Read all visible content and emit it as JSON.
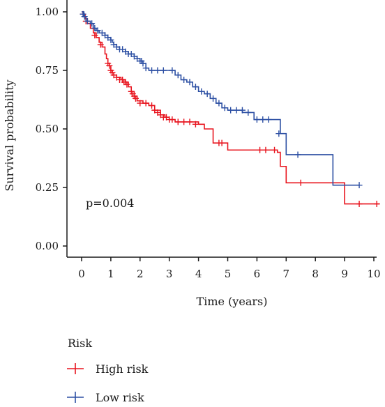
{
  "chart_data": {
    "type": "line",
    "subtype": "kaplan-meier",
    "xlabel": "Time (years)",
    "ylabel": "Survival probability",
    "xlim": [
      0,
      10
    ],
    "ylim": [
      0,
      1
    ],
    "x_ticks": [
      "0",
      "1",
      "2",
      "3",
      "4",
      "5",
      "6",
      "7",
      "8",
      "9",
      "10"
    ],
    "y_ticks": [
      "0.00",
      "0.25",
      "0.50",
      "0.75",
      "1.00"
    ],
    "grid": false,
    "annotation": "p=0.004",
    "legend_title": "Risk",
    "legend_position": "bottom",
    "series": [
      {
        "name": "High risk",
        "color": "#e8141e",
        "steps": [
          [
            0,
            1.0
          ],
          [
            0.05,
            0.99
          ],
          [
            0.12,
            0.97
          ],
          [
            0.2,
            0.95
          ],
          [
            0.3,
            0.93
          ],
          [
            0.4,
            0.91
          ],
          [
            0.5,
            0.89
          ],
          [
            0.6,
            0.87
          ],
          [
            0.7,
            0.85
          ],
          [
            0.8,
            0.82
          ],
          [
            0.85,
            0.8
          ],
          [
            0.9,
            0.78
          ],
          [
            0.95,
            0.77
          ],
          [
            1.0,
            0.75
          ],
          [
            1.05,
            0.74
          ],
          [
            1.1,
            0.73
          ],
          [
            1.2,
            0.72
          ],
          [
            1.35,
            0.71
          ],
          [
            1.5,
            0.7
          ],
          [
            1.6,
            0.68
          ],
          [
            1.7,
            0.66
          ],
          [
            1.8,
            0.64
          ],
          [
            1.9,
            0.62
          ],
          [
            2.1,
            0.61
          ],
          [
            2.3,
            0.6
          ],
          [
            2.5,
            0.58
          ],
          [
            2.7,
            0.56
          ],
          [
            2.85,
            0.55
          ],
          [
            3.0,
            0.54
          ],
          [
            3.2,
            0.53
          ],
          [
            3.5,
            0.53
          ],
          [
            4.0,
            0.52
          ],
          [
            4.2,
            0.5
          ],
          [
            4.5,
            0.44
          ],
          [
            5.0,
            0.41
          ],
          [
            6.3,
            0.41
          ],
          [
            6.5,
            0.41
          ],
          [
            6.7,
            0.4
          ],
          [
            6.8,
            0.34
          ],
          [
            7.0,
            0.27
          ],
          [
            8.0,
            0.27
          ],
          [
            8.9,
            0.27
          ],
          [
            9.0,
            0.18
          ],
          [
            10.2,
            0.18
          ]
        ],
        "censors": [
          [
            0.05,
            0.99
          ],
          [
            0.15,
            0.96
          ],
          [
            0.45,
            0.9
          ],
          [
            0.65,
            0.86
          ],
          [
            0.9,
            0.78
          ],
          [
            0.95,
            0.77
          ],
          [
            1.0,
            0.75
          ],
          [
            1.05,
            0.74
          ],
          [
            1.1,
            0.73
          ],
          [
            1.2,
            0.72
          ],
          [
            1.3,
            0.71
          ],
          [
            1.4,
            0.71
          ],
          [
            1.45,
            0.7
          ],
          [
            1.5,
            0.7
          ],
          [
            1.55,
            0.69
          ],
          [
            1.7,
            0.66
          ],
          [
            1.75,
            0.65
          ],
          [
            1.8,
            0.64
          ],
          [
            1.85,
            0.63
          ],
          [
            2.0,
            0.61
          ],
          [
            2.2,
            0.61
          ],
          [
            2.4,
            0.6
          ],
          [
            2.5,
            0.58
          ],
          [
            2.6,
            0.57
          ],
          [
            2.7,
            0.56
          ],
          [
            2.8,
            0.55
          ],
          [
            2.9,
            0.55
          ],
          [
            3.0,
            0.54
          ],
          [
            3.1,
            0.54
          ],
          [
            3.3,
            0.53
          ],
          [
            3.5,
            0.53
          ],
          [
            3.7,
            0.53
          ],
          [
            3.9,
            0.52
          ],
          [
            4.7,
            0.44
          ],
          [
            4.8,
            0.44
          ],
          [
            6.1,
            0.41
          ],
          [
            6.3,
            0.41
          ],
          [
            6.6,
            0.41
          ],
          [
            7.5,
            0.27
          ],
          [
            9.5,
            0.18
          ],
          [
            10.1,
            0.18
          ]
        ]
      },
      {
        "name": "Low risk",
        "color": "#2c4fa3",
        "steps": [
          [
            0,
            1.0
          ],
          [
            0.08,
            0.98
          ],
          [
            0.15,
            0.96
          ],
          [
            0.3,
            0.95
          ],
          [
            0.4,
            0.93
          ],
          [
            0.5,
            0.92
          ],
          [
            0.6,
            0.91
          ],
          [
            0.8,
            0.9
          ],
          [
            0.9,
            0.89
          ],
          [
            1.0,
            0.88
          ],
          [
            1.05,
            0.87
          ],
          [
            1.1,
            0.86
          ],
          [
            1.2,
            0.85
          ],
          [
            1.3,
            0.84
          ],
          [
            1.5,
            0.83
          ],
          [
            1.6,
            0.82
          ],
          [
            1.8,
            0.81
          ],
          [
            1.9,
            0.8
          ],
          [
            2.0,
            0.79
          ],
          [
            2.1,
            0.78
          ],
          [
            2.2,
            0.76
          ],
          [
            2.3,
            0.75
          ],
          [
            3.0,
            0.75
          ],
          [
            3.2,
            0.73
          ],
          [
            3.4,
            0.71
          ],
          [
            3.6,
            0.7
          ],
          [
            3.8,
            0.68
          ],
          [
            4.0,
            0.66
          ],
          [
            4.2,
            0.65
          ],
          [
            4.4,
            0.63
          ],
          [
            4.6,
            0.61
          ],
          [
            4.8,
            0.59
          ],
          [
            5.0,
            0.58
          ],
          [
            5.5,
            0.57
          ],
          [
            5.9,
            0.54
          ],
          [
            6.4,
            0.54
          ],
          [
            6.8,
            0.48
          ],
          [
            7.0,
            0.39
          ],
          [
            8.5,
            0.39
          ],
          [
            8.6,
            0.26
          ],
          [
            9.5,
            0.26
          ]
        ],
        "censors": [
          [
            0.05,
            0.99
          ],
          [
            0.1,
            0.98
          ],
          [
            0.2,
            0.96
          ],
          [
            0.35,
            0.95
          ],
          [
            0.45,
            0.93
          ],
          [
            0.55,
            0.92
          ],
          [
            0.7,
            0.91
          ],
          [
            0.8,
            0.9
          ],
          [
            0.9,
            0.89
          ],
          [
            1.0,
            0.88
          ],
          [
            1.1,
            0.86
          ],
          [
            1.2,
            0.85
          ],
          [
            1.3,
            0.84
          ],
          [
            1.4,
            0.84
          ],
          [
            1.5,
            0.83
          ],
          [
            1.6,
            0.82
          ],
          [
            1.7,
            0.82
          ],
          [
            1.8,
            0.81
          ],
          [
            1.9,
            0.8
          ],
          [
            2.0,
            0.79
          ],
          [
            2.05,
            0.79
          ],
          [
            2.1,
            0.78
          ],
          [
            2.2,
            0.76
          ],
          [
            2.4,
            0.75
          ],
          [
            2.6,
            0.75
          ],
          [
            2.8,
            0.75
          ],
          [
            3.1,
            0.75
          ],
          [
            3.3,
            0.73
          ],
          [
            3.5,
            0.71
          ],
          [
            3.7,
            0.7
          ],
          [
            3.9,
            0.68
          ],
          [
            4.1,
            0.66
          ],
          [
            4.3,
            0.65
          ],
          [
            4.5,
            0.63
          ],
          [
            4.7,
            0.61
          ],
          [
            4.9,
            0.59
          ],
          [
            5.1,
            0.58
          ],
          [
            5.3,
            0.58
          ],
          [
            5.5,
            0.58
          ],
          [
            5.7,
            0.57
          ],
          [
            6.0,
            0.54
          ],
          [
            6.2,
            0.54
          ],
          [
            6.4,
            0.54
          ],
          [
            6.75,
            0.48
          ],
          [
            7.4,
            0.39
          ],
          [
            9.5,
            0.26
          ]
        ]
      }
    ]
  }
}
